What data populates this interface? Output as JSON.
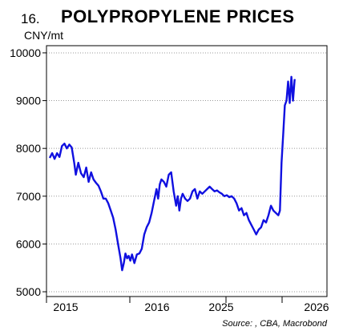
{
  "header": {
    "figure_number": "16.",
    "title": "POLYPROPYLENE PRICES",
    "unit": "CNY/mt"
  },
  "footer": {
    "source": "Source: , CBA, Macrobond"
  },
  "chart_data": {
    "type": "line",
    "title": "POLYPROPYLENE PRICES",
    "ylabel": "CNY/mt",
    "xlabel": "",
    "ylim": [
      4900,
      10150
    ],
    "yticks": [
      5000,
      6000,
      7000,
      8000,
      9000,
      10000
    ],
    "x_tick_labels": [
      "2015",
      "2016",
      "2025",
      "2026"
    ],
    "grid": "horizontal dotted",
    "series": [
      {
        "color": "#1010e0",
        "points": [
          [
            0.0,
            7800
          ],
          [
            0.009,
            7900
          ],
          [
            0.018,
            7780
          ],
          [
            0.027,
            7900
          ],
          [
            0.036,
            7820
          ],
          [
            0.045,
            8050
          ],
          [
            0.054,
            8100
          ],
          [
            0.063,
            8000
          ],
          [
            0.072,
            8080
          ],
          [
            0.081,
            8020
          ],
          [
            0.09,
            7700
          ],
          [
            0.096,
            7450
          ],
          [
            0.105,
            7700
          ],
          [
            0.115,
            7480
          ],
          [
            0.125,
            7400
          ],
          [
            0.134,
            7600
          ],
          [
            0.143,
            7300
          ],
          [
            0.152,
            7500
          ],
          [
            0.161,
            7350
          ],
          [
            0.17,
            7280
          ],
          [
            0.179,
            7220
          ],
          [
            0.188,
            7100
          ],
          [
            0.197,
            6950
          ],
          [
            0.206,
            6950
          ],
          [
            0.215,
            6850
          ],
          [
            0.224,
            6700
          ],
          [
            0.233,
            6550
          ],
          [
            0.242,
            6300
          ],
          [
            0.251,
            6000
          ],
          [
            0.26,
            5700
          ],
          [
            0.266,
            5450
          ],
          [
            0.272,
            5600
          ],
          [
            0.278,
            5800
          ],
          [
            0.284,
            5700
          ],
          [
            0.29,
            5750
          ],
          [
            0.296,
            5650
          ],
          [
            0.302,
            5780
          ],
          [
            0.311,
            5600
          ],
          [
            0.32,
            5780
          ],
          [
            0.329,
            5800
          ],
          [
            0.338,
            5900
          ],
          [
            0.347,
            6200
          ],
          [
            0.356,
            6350
          ],
          [
            0.365,
            6450
          ],
          [
            0.374,
            6650
          ],
          [
            0.383,
            6900
          ],
          [
            0.392,
            7150
          ],
          [
            0.398,
            6950
          ],
          [
            0.404,
            7250
          ],
          [
            0.41,
            7350
          ],
          [
            0.419,
            7300
          ],
          [
            0.428,
            7200
          ],
          [
            0.437,
            7450
          ],
          [
            0.446,
            7500
          ],
          [
            0.455,
            7100
          ],
          [
            0.464,
            6800
          ],
          [
            0.47,
            7000
          ],
          [
            0.476,
            6700
          ],
          [
            0.482,
            6950
          ],
          [
            0.488,
            7050
          ],
          [
            0.497,
            6950
          ],
          [
            0.506,
            6900
          ],
          [
            0.515,
            6950
          ],
          [
            0.524,
            7100
          ],
          [
            0.533,
            7150
          ],
          [
            0.542,
            6950
          ],
          [
            0.551,
            7100
          ],
          [
            0.56,
            7050
          ],
          [
            0.569,
            7100
          ],
          [
            0.578,
            7150
          ],
          [
            0.587,
            7200
          ],
          [
            0.596,
            7150
          ],
          [
            0.605,
            7100
          ],
          [
            0.614,
            7120
          ],
          [
            0.623,
            7080
          ],
          [
            0.632,
            7050
          ],
          [
            0.641,
            7000
          ],
          [
            0.65,
            7020
          ],
          [
            0.659,
            6980
          ],
          [
            0.668,
            7000
          ],
          [
            0.677,
            6950
          ],
          [
            0.686,
            6850
          ],
          [
            0.695,
            6700
          ],
          [
            0.704,
            6750
          ],
          [
            0.713,
            6600
          ],
          [
            0.722,
            6650
          ],
          [
            0.731,
            6500
          ],
          [
            0.74,
            6400
          ],
          [
            0.749,
            6300
          ],
          [
            0.758,
            6200
          ],
          [
            0.767,
            6300
          ],
          [
            0.776,
            6350
          ],
          [
            0.785,
            6500
          ],
          [
            0.794,
            6450
          ],
          [
            0.803,
            6600
          ],
          [
            0.812,
            6800
          ],
          [
            0.821,
            6700
          ],
          [
            0.83,
            6650
          ],
          [
            0.839,
            6600
          ],
          [
            0.845,
            6700
          ],
          [
            0.851,
            7700
          ],
          [
            0.857,
            8300
          ],
          [
            0.863,
            8900
          ],
          [
            0.869,
            9000
          ],
          [
            0.875,
            9400
          ],
          [
            0.881,
            8950
          ],
          [
            0.887,
            9500
          ],
          [
            0.893,
            9000
          ],
          [
            0.899,
            9450
          ]
        ]
      }
    ]
  }
}
